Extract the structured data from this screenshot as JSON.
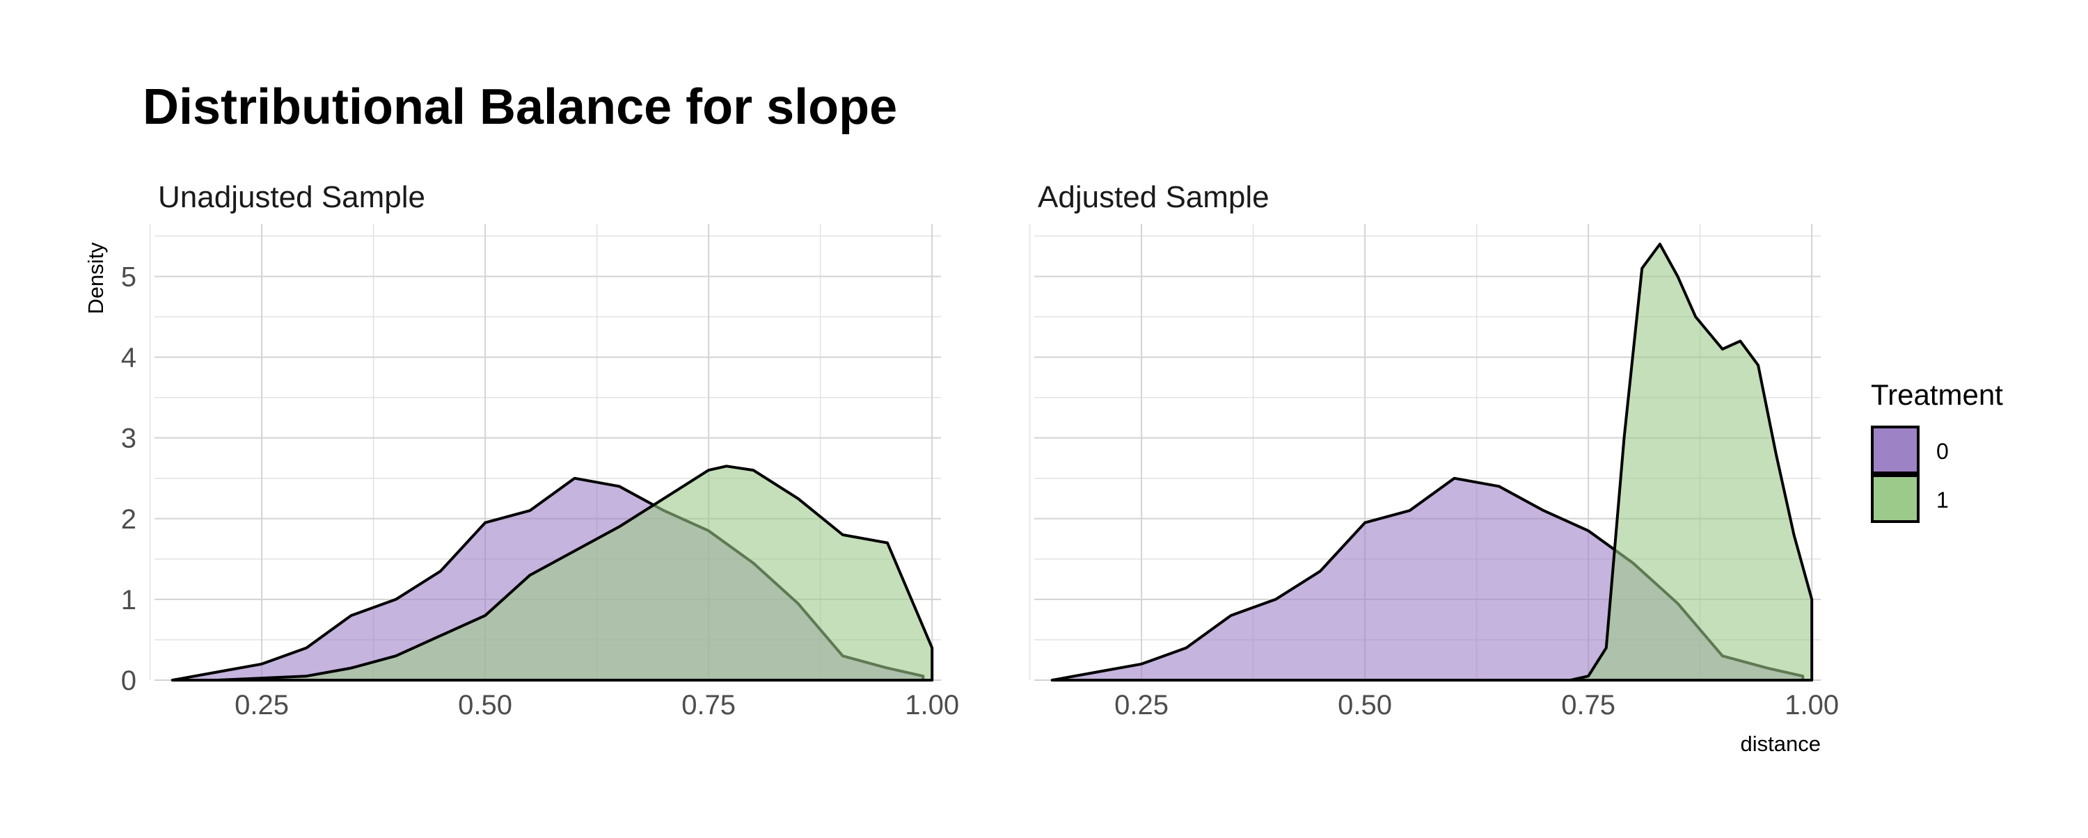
{
  "title": "Distributional Balance for slope",
  "colors": {
    "0": "#9e82c6",
    "1": "#9cca8a"
  },
  "chart_data": [
    {
      "type": "area",
      "subtitle": "Unadjusted Sample",
      "ylabel": "Density",
      "xlabel": "",
      "xlim": [
        0.13,
        1.01
      ],
      "ylim": [
        0,
        5.65
      ],
      "xticks": [
        "0.25",
        "0.50",
        "0.75",
        "1.00"
      ],
      "yticks": [
        "0",
        "1",
        "2",
        "3",
        "4",
        "5"
      ],
      "grid": true,
      "series": [
        {
          "name": "0",
          "x": [
            0.15,
            0.2,
            0.25,
            0.3,
            0.35,
            0.4,
            0.45,
            0.5,
            0.55,
            0.6,
            0.65,
            0.7,
            0.75,
            0.8,
            0.85,
            0.9,
            0.95,
            0.99
          ],
          "y": [
            0.0,
            0.1,
            0.2,
            0.4,
            0.8,
            1.0,
            1.35,
            1.95,
            2.1,
            2.5,
            2.4,
            2.1,
            1.85,
            1.45,
            0.95,
            0.3,
            0.15,
            0.05
          ]
        },
        {
          "name": "1",
          "x": [
            0.2,
            0.3,
            0.35,
            0.4,
            0.45,
            0.5,
            0.55,
            0.6,
            0.65,
            0.7,
            0.75,
            0.77,
            0.8,
            0.85,
            0.9,
            0.95,
            1.0,
            1.0
          ],
          "y": [
            0.0,
            0.05,
            0.15,
            0.3,
            0.55,
            0.8,
            1.3,
            1.6,
            1.9,
            2.25,
            2.6,
            2.65,
            2.6,
            2.25,
            1.8,
            1.7,
            0.4,
            0.0
          ]
        }
      ]
    },
    {
      "type": "area",
      "subtitle": "Adjusted Sample",
      "ylabel": "",
      "xlabel": "distance",
      "xlim": [
        0.13,
        1.01
      ],
      "ylim": [
        0,
        5.65
      ],
      "xticks": [
        "0.25",
        "0.50",
        "0.75",
        "1.00"
      ],
      "yticks": [],
      "grid": true,
      "series": [
        {
          "name": "0",
          "x": [
            0.15,
            0.2,
            0.25,
            0.3,
            0.35,
            0.4,
            0.45,
            0.5,
            0.55,
            0.6,
            0.65,
            0.7,
            0.75,
            0.8,
            0.85,
            0.9,
            0.95,
            0.99
          ],
          "y": [
            0.0,
            0.1,
            0.2,
            0.4,
            0.8,
            1.0,
            1.35,
            1.95,
            2.1,
            2.5,
            2.4,
            2.1,
            1.85,
            1.45,
            0.95,
            0.3,
            0.15,
            0.05
          ]
        },
        {
          "name": "1",
          "x": [
            0.73,
            0.75,
            0.77,
            0.79,
            0.81,
            0.83,
            0.85,
            0.87,
            0.9,
            0.92,
            0.94,
            0.96,
            0.98,
            1.0,
            1.0
          ],
          "y": [
            0.0,
            0.05,
            0.4,
            3.0,
            5.1,
            5.4,
            5.0,
            4.5,
            4.1,
            4.2,
            3.9,
            2.8,
            1.8,
            1.0,
            0.0
          ]
        }
      ]
    }
  ],
  "legend": {
    "title": "Treatment",
    "items": [
      {
        "label": "0"
      },
      {
        "label": "1"
      }
    ]
  }
}
